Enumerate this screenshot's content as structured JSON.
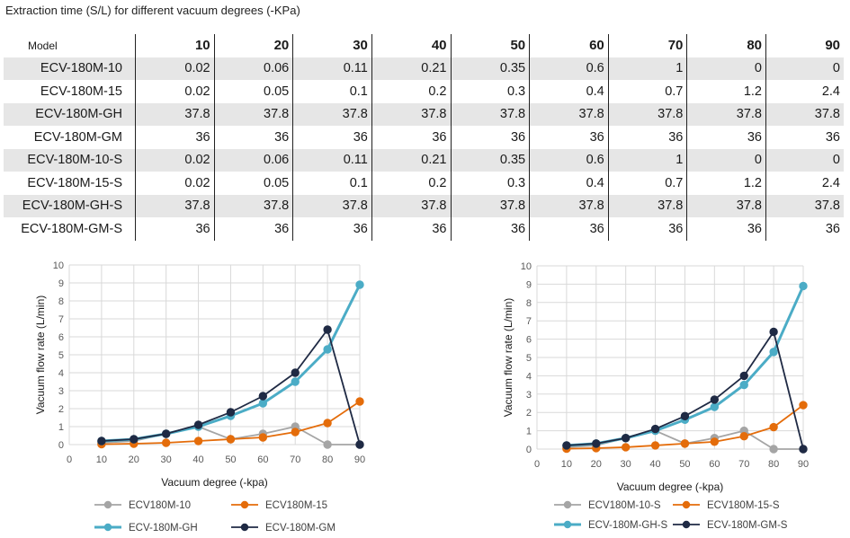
{
  "table": {
    "title": "Extraction time (S/L) for different vacuum degrees (-KPa)",
    "model_header": "Model",
    "columns": [
      "10",
      "20",
      "30",
      "40",
      "50",
      "60",
      "70",
      "80",
      "90"
    ],
    "rows": [
      {
        "model": "ECV-180M-10",
        "values": [
          "0.02",
          "0.06",
          "0.11",
          "0.21",
          "0.35",
          "0.6",
          "1",
          "0",
          "0"
        ]
      },
      {
        "model": "ECV-180M-15",
        "values": [
          "0.02",
          "0.05",
          "0.1",
          "0.2",
          "0.3",
          "0.4",
          "0.7",
          "1.2",
          "2.4"
        ]
      },
      {
        "model": "ECV-180M-GH",
        "values": [
          "37.8",
          "37.8",
          "37.8",
          "37.8",
          "37.8",
          "37.8",
          "37.8",
          "37.8",
          "37.8"
        ]
      },
      {
        "model": "ECV-180M-GM",
        "values": [
          "36",
          "36",
          "36",
          "36",
          "36",
          "36",
          "36",
          "36",
          "36"
        ]
      },
      {
        "model": "ECV-180M-10-S",
        "values": [
          "0.02",
          "0.06",
          "0.11",
          "0.21",
          "0.35",
          "0.6",
          "1",
          "0",
          "0"
        ]
      },
      {
        "model": "ECV-180M-15-S",
        "values": [
          "0.02",
          "0.05",
          "0.1",
          "0.2",
          "0.3",
          "0.4",
          "0.7",
          "1.2",
          "2.4"
        ]
      },
      {
        "model": "ECV-180M-GH-S",
        "values": [
          "37.8",
          "37.8",
          "37.8",
          "37.8",
          "37.8",
          "37.8",
          "37.8",
          "37.8",
          "37.8"
        ]
      },
      {
        "model": "ECV-180M-GM-S",
        "values": [
          "36",
          "36",
          "36",
          "36",
          "36",
          "36",
          "36",
          "36",
          "36"
        ]
      }
    ]
  },
  "chart_data": [
    {
      "type": "line",
      "xlabel": "Vacuum degree (-kpa)",
      "ylabel": "Vacuum flow rate (L/min)",
      "xlim": [
        0,
        90
      ],
      "ylim": [
        0,
        10
      ],
      "x_ticks": [
        0,
        10,
        20,
        30,
        40,
        50,
        60,
        70,
        80,
        90
      ],
      "y_ticks": [
        0,
        1,
        2,
        3,
        4,
        5,
        6,
        7,
        8,
        9,
        10
      ],
      "grid": "both",
      "legend_position": "bottom",
      "x": [
        10,
        20,
        30,
        40,
        50,
        60,
        70,
        80,
        90
      ],
      "series": [
        {
          "name": "ECV180M-10",
          "color": "#a5a5a5",
          "values": [
            0.1,
            0.2,
            0.6,
            1.0,
            0.3,
            0.6,
            1.0,
            0,
            0
          ]
        },
        {
          "name": "ECV180M-15",
          "color": "#e46c0a",
          "values": [
            0.02,
            0.05,
            0.1,
            0.2,
            0.3,
            0.4,
            0.7,
            1.2,
            2.4
          ]
        },
        {
          "name": "ECV-180M-GH",
          "color": "#4bacc6",
          "values": [
            0.2,
            0.3,
            0.6,
            1.0,
            1.6,
            2.3,
            3.5,
            5.3,
            8.9
          ]
        },
        {
          "name": "ECV-180M-GM",
          "color": "#1f2a44",
          "values": [
            0.2,
            0.3,
            0.6,
            1.1,
            1.8,
            2.7,
            4.0,
            6.4,
            0
          ]
        }
      ]
    },
    {
      "type": "line",
      "xlabel": "Vacuum degree (-kpa)",
      "ylabel": "Vacuum flow rate (L/min)",
      "xlim": [
        0,
        90
      ],
      "ylim": [
        0,
        10
      ],
      "x_ticks": [
        0,
        10,
        20,
        30,
        40,
        50,
        60,
        70,
        80,
        90
      ],
      "y_ticks": [
        0,
        1,
        2,
        3,
        4,
        5,
        6,
        7,
        8,
        9,
        10
      ],
      "grid": "both",
      "legend_position": "bottom",
      "x": [
        10,
        20,
        30,
        40,
        50,
        60,
        70,
        80,
        90
      ],
      "series": [
        {
          "name": "ECV180M-10-S",
          "color": "#a5a5a5",
          "values": [
            0.1,
            0.2,
            0.6,
            1.0,
            0.3,
            0.6,
            1.0,
            0,
            0
          ]
        },
        {
          "name": "ECV180M-15-S",
          "color": "#e46c0a",
          "values": [
            0.02,
            0.05,
            0.1,
            0.2,
            0.3,
            0.4,
            0.7,
            1.2,
            2.4
          ]
        },
        {
          "name": "ECV-180M-GH-S",
          "color": "#4bacc6",
          "values": [
            0.2,
            0.3,
            0.6,
            1.0,
            1.6,
            2.3,
            3.5,
            5.3,
            8.9
          ]
        },
        {
          "name": "ECV-180M-GM-S",
          "color": "#1f2a44",
          "values": [
            0.2,
            0.3,
            0.6,
            1.1,
            1.8,
            2.7,
            4.0,
            6.4,
            0
          ]
        }
      ]
    }
  ]
}
